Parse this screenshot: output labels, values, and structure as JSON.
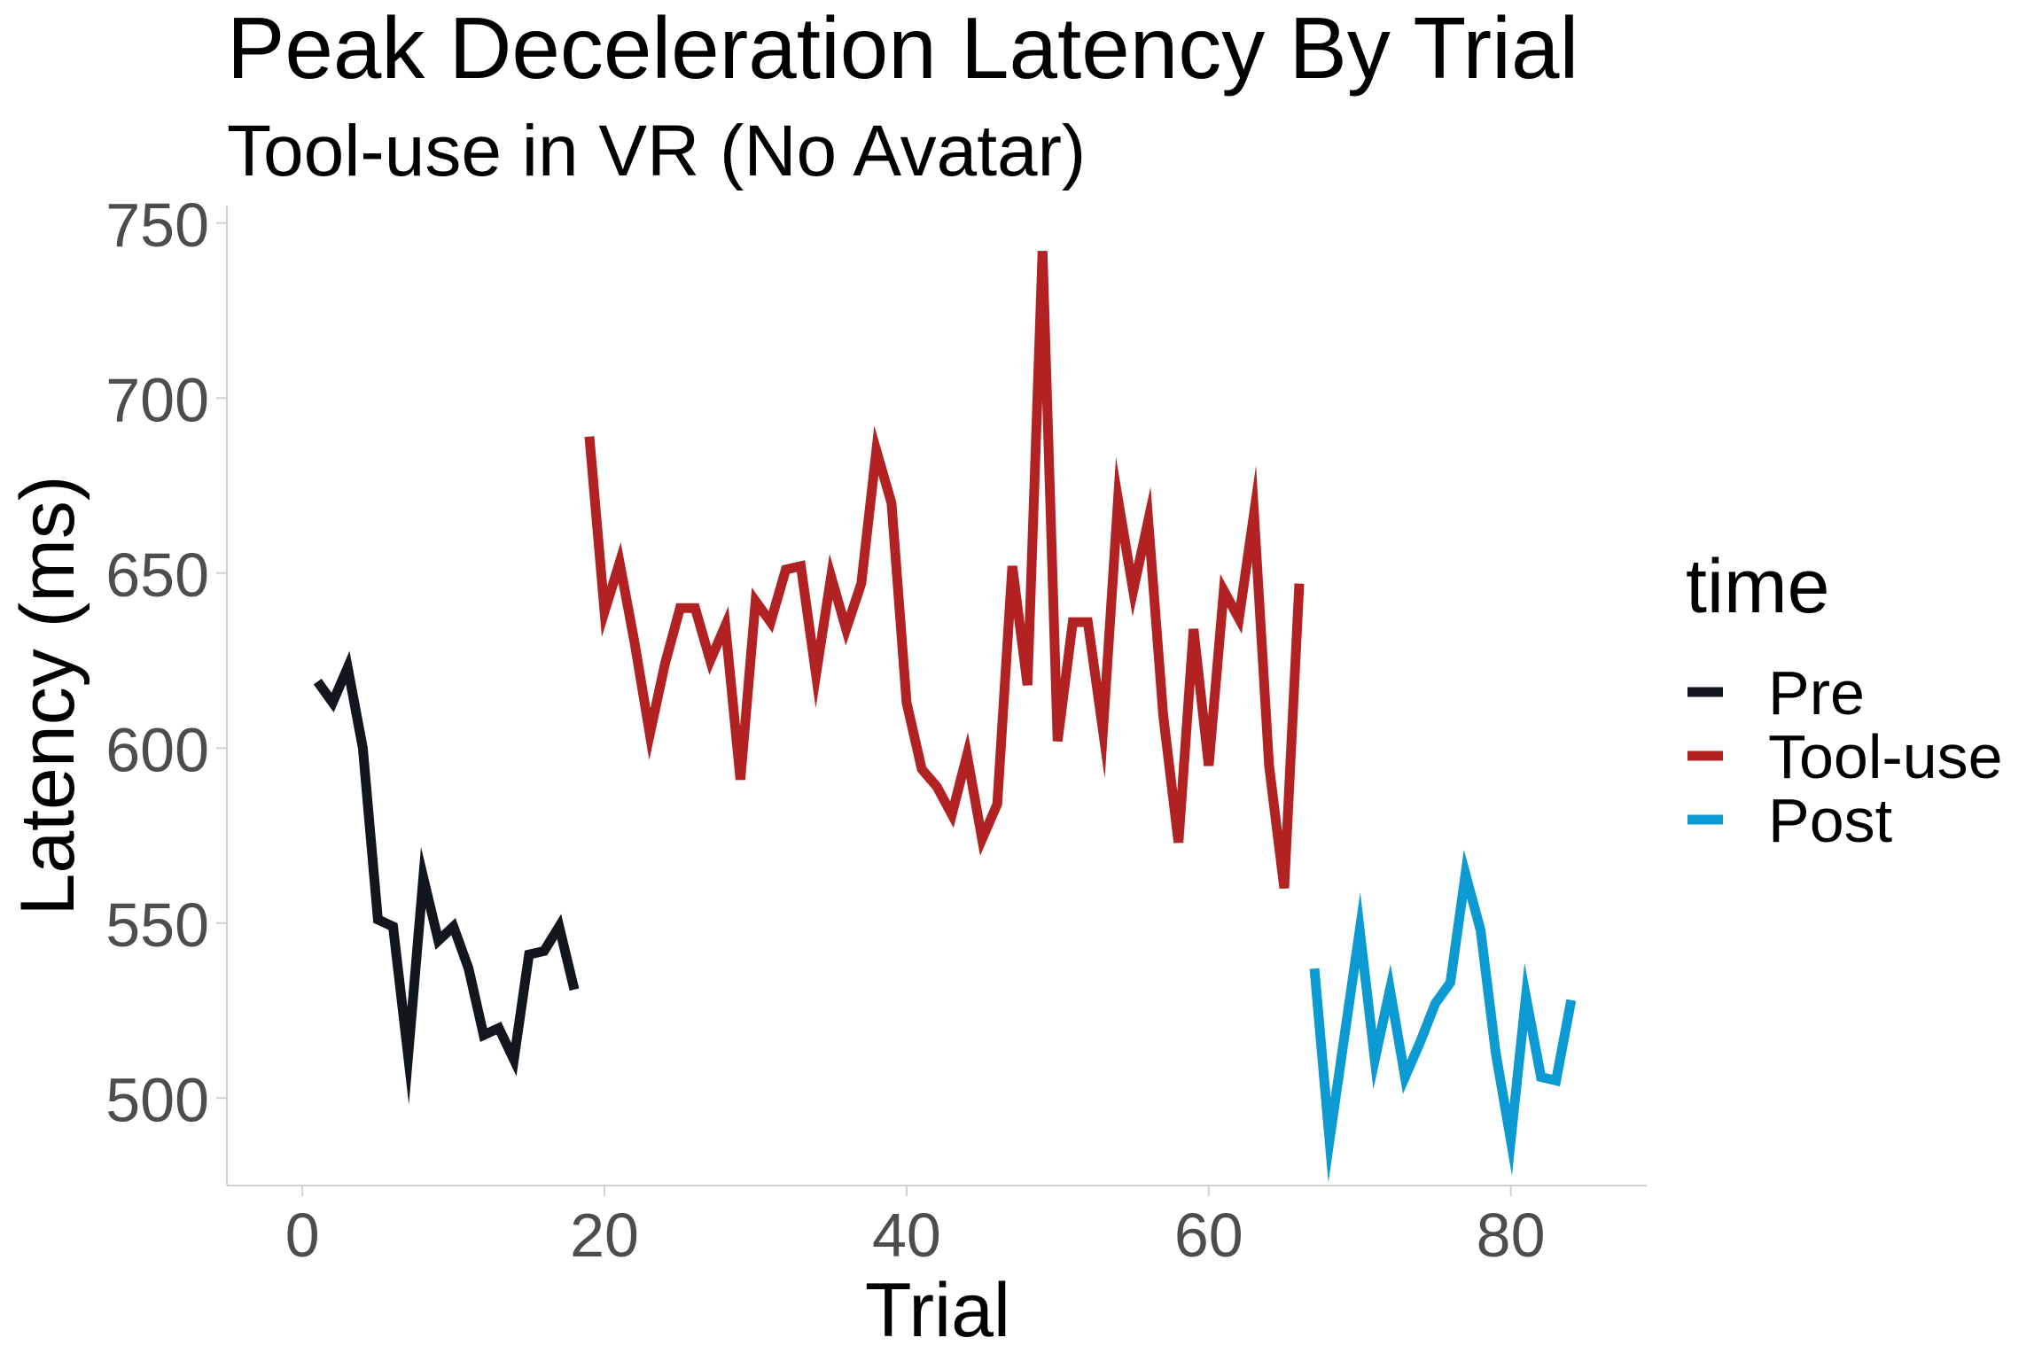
{
  "chart_data": {
    "type": "line",
    "title": "Peak Deceleration Latency By Trial",
    "subtitle": "Tool-use in VR (No Avatar)",
    "xlabel": "Trial",
    "ylabel": "Latency (ms)",
    "xlim": [
      -5,
      89
    ],
    "ylim": [
      475,
      755
    ],
    "x_ticks": [
      0,
      20,
      40,
      60,
      80
    ],
    "y_ticks": [
      500,
      550,
      600,
      650,
      700,
      750
    ],
    "grid": false,
    "legend": {
      "title": "time",
      "position": "right"
    },
    "series": [
      {
        "name": "Pre",
        "color": "#11171d",
        "x": [
          1,
          2,
          3,
          4,
          5,
          6,
          7,
          8,
          9,
          10,
          11,
          12,
          13,
          14,
          15,
          16,
          17,
          18
        ],
        "y": [
          619,
          613,
          623,
          600,
          551,
          549,
          512,
          563,
          545,
          549,
          537,
          518,
          520,
          511,
          541,
          542,
          549,
          531
        ]
      },
      {
        "name": "Tool-use",
        "color": "#b22222",
        "x": [
          19,
          20,
          21,
          22,
          23,
          24,
          25,
          26,
          27,
          28,
          29,
          30,
          31,
          32,
          33,
          34,
          35,
          36,
          37,
          38,
          39,
          40,
          41,
          42,
          43,
          44,
          45,
          46,
          47,
          48,
          49,
          50,
          51,
          52,
          53,
          54,
          55,
          56,
          57,
          58,
          59,
          60,
          61,
          62,
          63,
          64,
          65,
          66
        ],
        "y": [
          689,
          639,
          653,
          630,
          604,
          624,
          640,
          640,
          625,
          635,
          591,
          642,
          636,
          651,
          652,
          621,
          649,
          634,
          647,
          685,
          670,
          613,
          594,
          589,
          581,
          598,
          574,
          584,
          652,
          618,
          742,
          602,
          636,
          636,
          605,
          671,
          645,
          665,
          609,
          573,
          634,
          595,
          645,
          637,
          667,
          595,
          560,
          647
        ]
      },
      {
        "name": "Post",
        "color": "#0c9ad3",
        "x": [
          67,
          68,
          69,
          70,
          71,
          72,
          73,
          74,
          75,
          76,
          77,
          78,
          79,
          80,
          81,
          82,
          83,
          84
        ],
        "y": [
          537,
          488,
          518,
          548,
          511,
          531,
          506,
          516,
          527,
          533,
          564,
          548,
          513,
          488,
          529,
          506,
          505,
          528
        ]
      }
    ]
  }
}
